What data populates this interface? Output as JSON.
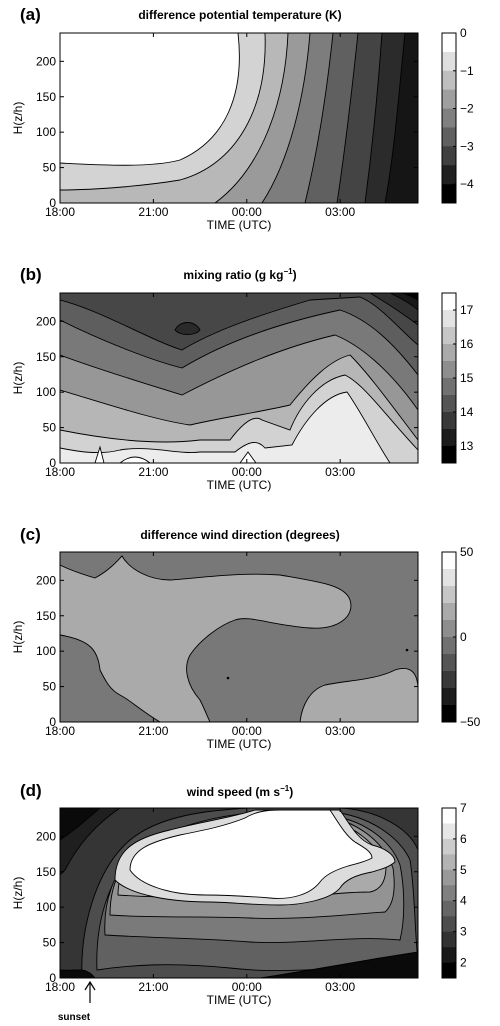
{
  "figure": {
    "xlabel": "TIME (UTC)",
    "ylabel": "H(z/h)",
    "xticks": [
      "18:00",
      "21:00",
      "00:00",
      "03:00"
    ],
    "yticks": [
      "0",
      "50",
      "100",
      "150",
      "200"
    ],
    "annotation": "sunset"
  },
  "chart_data": [
    {
      "type": "heatmap",
      "letter": "(a)",
      "title": "difference potential temperature (K)",
      "xlabel": "TIME (UTC)",
      "ylabel": "H(z/h)",
      "xlim": [
        "18:00",
        "05:30"
      ],
      "ylim": [
        0,
        240
      ],
      "colorbar": {
        "range": [
          -4.5,
          0
        ],
        "levels": 9,
        "ticks": [
          "0",
          "−1",
          "−2",
          "−3",
          "−4"
        ]
      }
    },
    {
      "type": "heatmap",
      "letter": "(b)",
      "title": "mixing ratio (g kg",
      "title_sup": "−1",
      "title_end": ")",
      "xlabel": "TIME (UTC)",
      "ylabel": "H(z/h)",
      "xlim": [
        "18:00",
        "05:30"
      ],
      "ylim": [
        0,
        240
      ],
      "colorbar": {
        "range": [
          12.5,
          17.5
        ],
        "levels": 10,
        "ticks": [
          "17",
          "16",
          "15",
          "14",
          "13"
        ]
      }
    },
    {
      "type": "heatmap",
      "letter": "(c)",
      "title": "difference wind direction (degrees)",
      "xlabel": "TIME (UTC)",
      "ylabel": "H(z/h)",
      "xlim": [
        "18:00",
        "05:30"
      ],
      "ylim": [
        0,
        240
      ],
      "colorbar": {
        "range": [
          -50,
          50
        ],
        "levels": 10,
        "ticks": [
          "50",
          "0",
          "−50"
        ]
      }
    },
    {
      "type": "heatmap",
      "letter": "(d)",
      "title": "wind speed (m s",
      "title_sup": "−1",
      "title_end": ")",
      "xlabel": "TIME (UTC)",
      "ylabel": "H(z/h)",
      "xlim": [
        "18:00",
        "05:30"
      ],
      "ylim": [
        0,
        240
      ],
      "colorbar": {
        "range": [
          1.5,
          7
        ],
        "levels": 11,
        "ticks": [
          "7",
          "6",
          "5",
          "4",
          "3",
          "2"
        ]
      }
    }
  ]
}
